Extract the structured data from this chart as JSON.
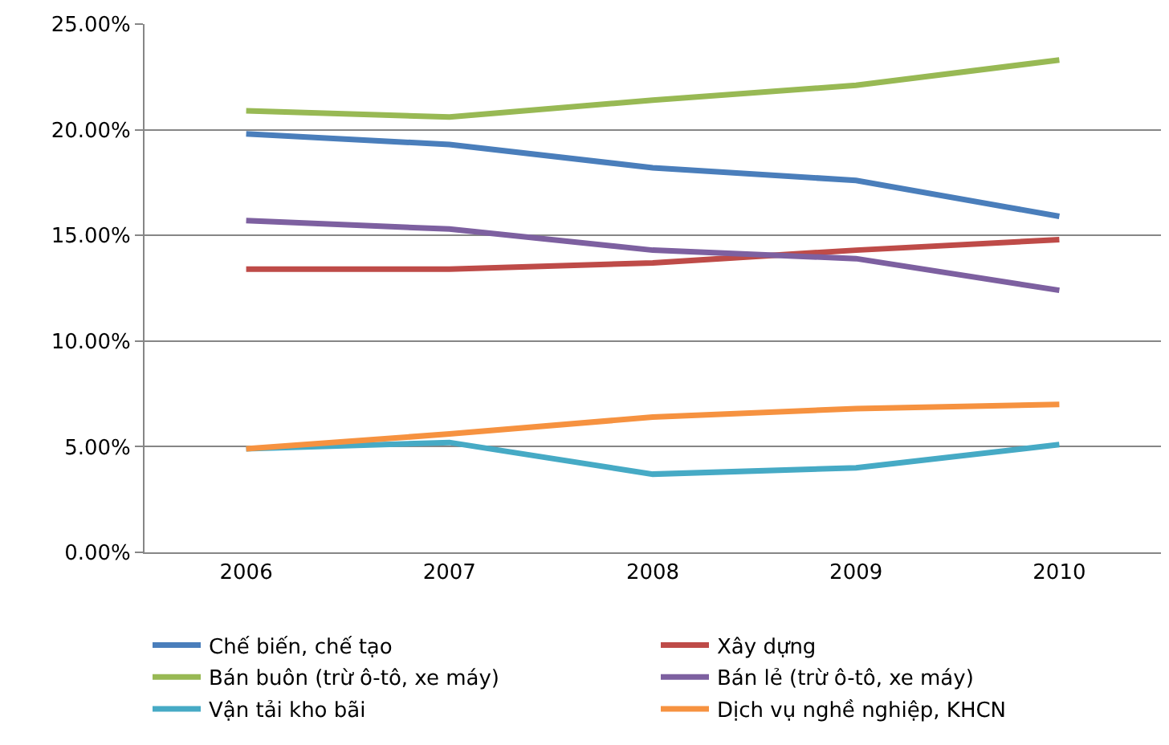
{
  "chart_data": {
    "type": "line",
    "categories": [
      "2006",
      "2007",
      "2008",
      "2009",
      "2010"
    ],
    "series": [
      {
        "name": "Chế biến, chế tạo",
        "color": "#4a7ebb",
        "values": [
          19.8,
          19.3,
          18.2,
          17.6,
          15.9
        ]
      },
      {
        "name": "Xây dựng",
        "color": "#be4b48",
        "values": [
          13.4,
          13.4,
          13.7,
          14.3,
          14.8
        ]
      },
      {
        "name": "Bán buôn (trừ ô-tô, xe máy)",
        "color": "#98b954",
        "values": [
          20.9,
          20.6,
          21.4,
          22.1,
          23.3
        ]
      },
      {
        "name": "Bán lẻ (trừ ô-tô, xe máy)",
        "color": "#7d60a0",
        "values": [
          15.7,
          15.3,
          14.3,
          13.9,
          12.4
        ]
      },
      {
        "name": "Vận tải kho bãi",
        "color": "#46aac5",
        "values": [
          4.9,
          5.2,
          3.7,
          4.0,
          5.1
        ]
      },
      {
        "name": "Dịch vụ nghề nghiệp, KHCN",
        "color": "#f69240",
        "values": [
          4.9,
          5.6,
          6.4,
          6.8,
          7.0
        ]
      }
    ],
    "ylim": [
      0,
      25
    ],
    "yticks": [
      {
        "value": 0,
        "label": "0.00%"
      },
      {
        "value": 5,
        "label": "5.00%"
      },
      {
        "value": 10,
        "label": "10.00%"
      },
      {
        "value": 15,
        "label": "15.00%"
      },
      {
        "value": 20,
        "label": "20.00%"
      },
      {
        "value": 25,
        "label": "25.00%"
      }
    ],
    "grid": "y",
    "legend": "bottom",
    "marker": "none",
    "line_style": "solid"
  }
}
